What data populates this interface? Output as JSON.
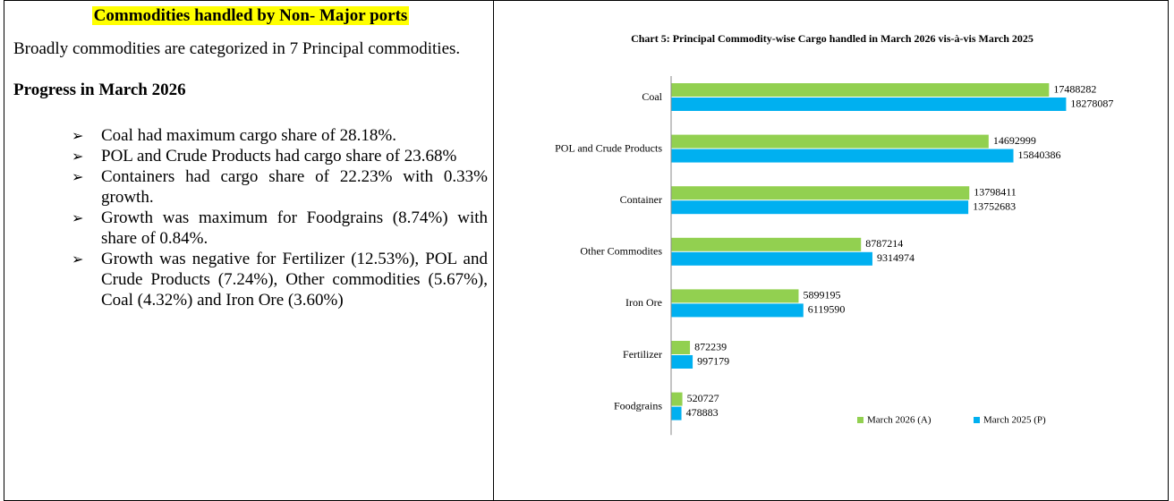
{
  "left": {
    "heading": "Commodities handled by Non- Major ports",
    "intro": "Broadly commodities are categorized in 7 Principal commodities.",
    "subheading": "Progress in March 2026",
    "bullets": [
      "Coal had maximum cargo share of 28.18%.",
      "POL and Crude Products had cargo share of 23.68%",
      "Containers had cargo share of 22.23% with 0.33% growth.",
      "Growth was maximum for Foodgrains (8.74%) with share of 0.84%.",
      "Growth was negative for Fertilizer (12.53%), POL and Crude Products (7.24%), Other commodities (5.67%), Coal (4.32%) and Iron Ore (3.60%)"
    ]
  },
  "chart_data": {
    "type": "bar",
    "orientation": "horizontal",
    "title": "Chart 5: Principal Commodity-wise Cargo handled  in March 2026 vis-à-vis March 2025",
    "categories": [
      "Coal",
      "POL and Crude Products",
      "Container",
      "Other Commodites",
      "Iron Ore",
      "Fertilizer",
      "Foodgrains"
    ],
    "series": [
      {
        "name": "March 2026 (A)",
        "color": "#92d050",
        "values": [
          17488282,
          14692999,
          13798411,
          8787214,
          5899195,
          872239,
          520727
        ]
      },
      {
        "name": "March 2025 (P)",
        "color": "#00b0f0",
        "values": [
          18278087,
          15840386,
          13752683,
          9314974,
          6119590,
          997179,
          478883
        ]
      }
    ],
    "xlim": [
      0,
      20000000
    ]
  }
}
